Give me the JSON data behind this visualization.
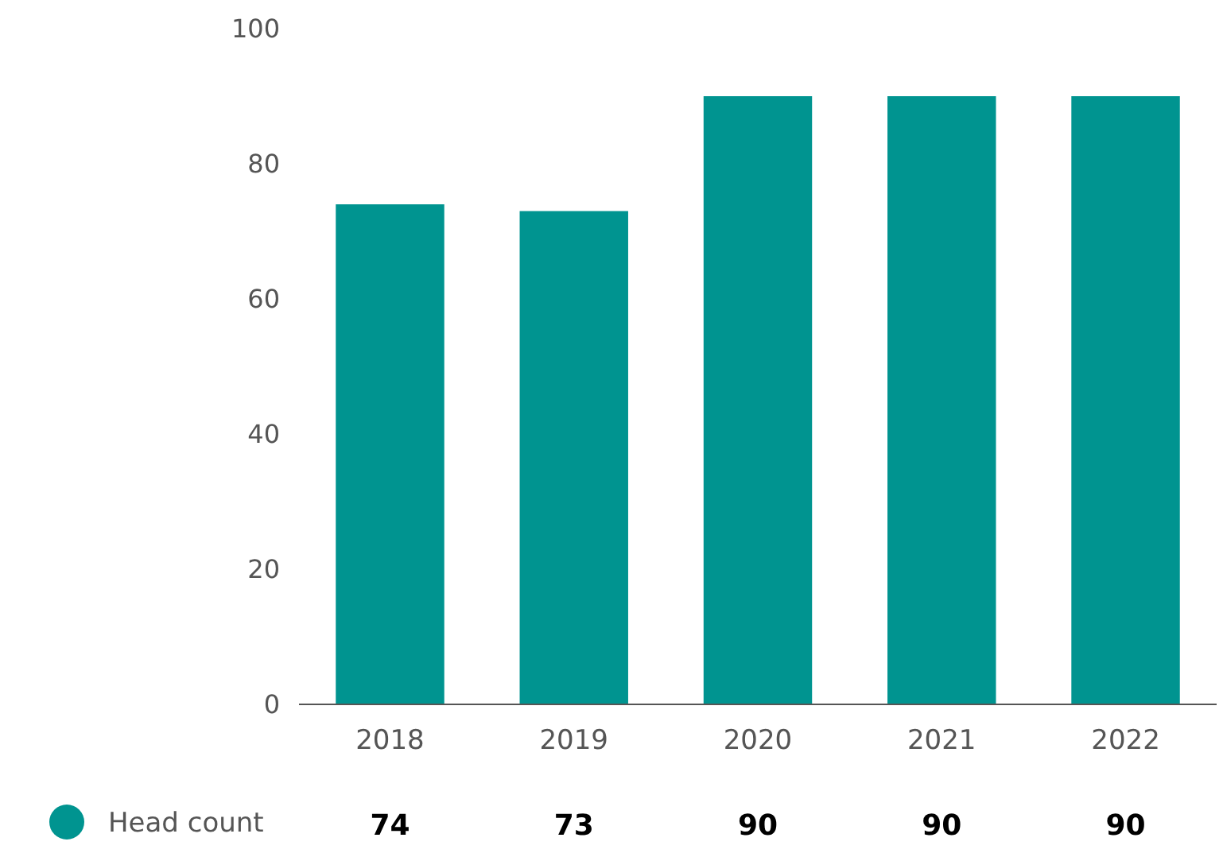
{
  "chart_data": {
    "type": "bar",
    "categories": [
      "2018",
      "2019",
      "2020",
      "2021",
      "2022"
    ],
    "series": [
      {
        "name": "Head count",
        "color": "#009490",
        "values": [
          74,
          73,
          90,
          90,
          90
        ]
      }
    ],
    "ylim": [
      0,
      100
    ],
    "yticks": [
      0,
      20,
      40,
      60,
      80,
      100
    ],
    "grid": false,
    "legend": "bottom",
    "data_labels": true
  }
}
